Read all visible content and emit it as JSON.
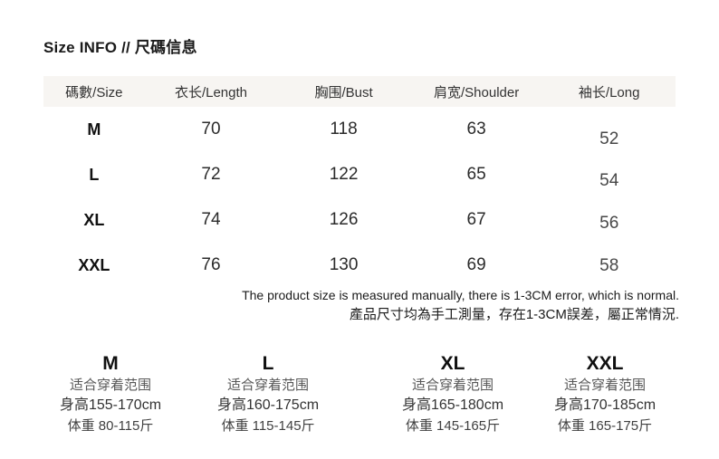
{
  "page": {
    "title": "Size INFO // 尺碼信息"
  },
  "size_table": {
    "columns": [
      "碼數/Size",
      "衣长/Length",
      "胸围/Bust",
      "肩宽/Shoulder",
      "袖长/Long"
    ],
    "rows": [
      {
        "size": "M",
        "length": "70",
        "bust": "118",
        "shoulder": "63",
        "long": "52"
      },
      {
        "size": "L",
        "length": "72",
        "bust": "122",
        "shoulder": "65",
        "long": "54"
      },
      {
        "size": "XL",
        "length": "74",
        "bust": "126",
        "shoulder": "67",
        "long": "56"
      },
      {
        "size": "XXL",
        "length": "76",
        "bust": "130",
        "shoulder": "69",
        "long": "58"
      }
    ]
  },
  "note": {
    "en": "The product size is measured manually, there is 1-3CM error, which is normal.",
    "zh": "產品尺寸均為手工測量，存在1-3CM誤差，屬正常情況."
  },
  "fit_guide": [
    {
      "size": "M",
      "label": "适合穿着范围",
      "height": "身高155-170cm",
      "weight": "体重 80-115斤"
    },
    {
      "size": "L",
      "label": "适合穿着范围",
      "height": "身高160-175cm",
      "weight": "体重 115-145斤"
    },
    {
      "size": "XL",
      "label": "适合穿着范围",
      "height": "身高165-180cm",
      "weight": "体重 145-165斤"
    },
    {
      "size": "XXL",
      "label": "适合穿着范围",
      "height": "身高170-185cm",
      "weight": "体重 165-175斤"
    }
  ],
  "colors": {
    "header_bg": "#f7f5f2",
    "text": "#222222"
  }
}
